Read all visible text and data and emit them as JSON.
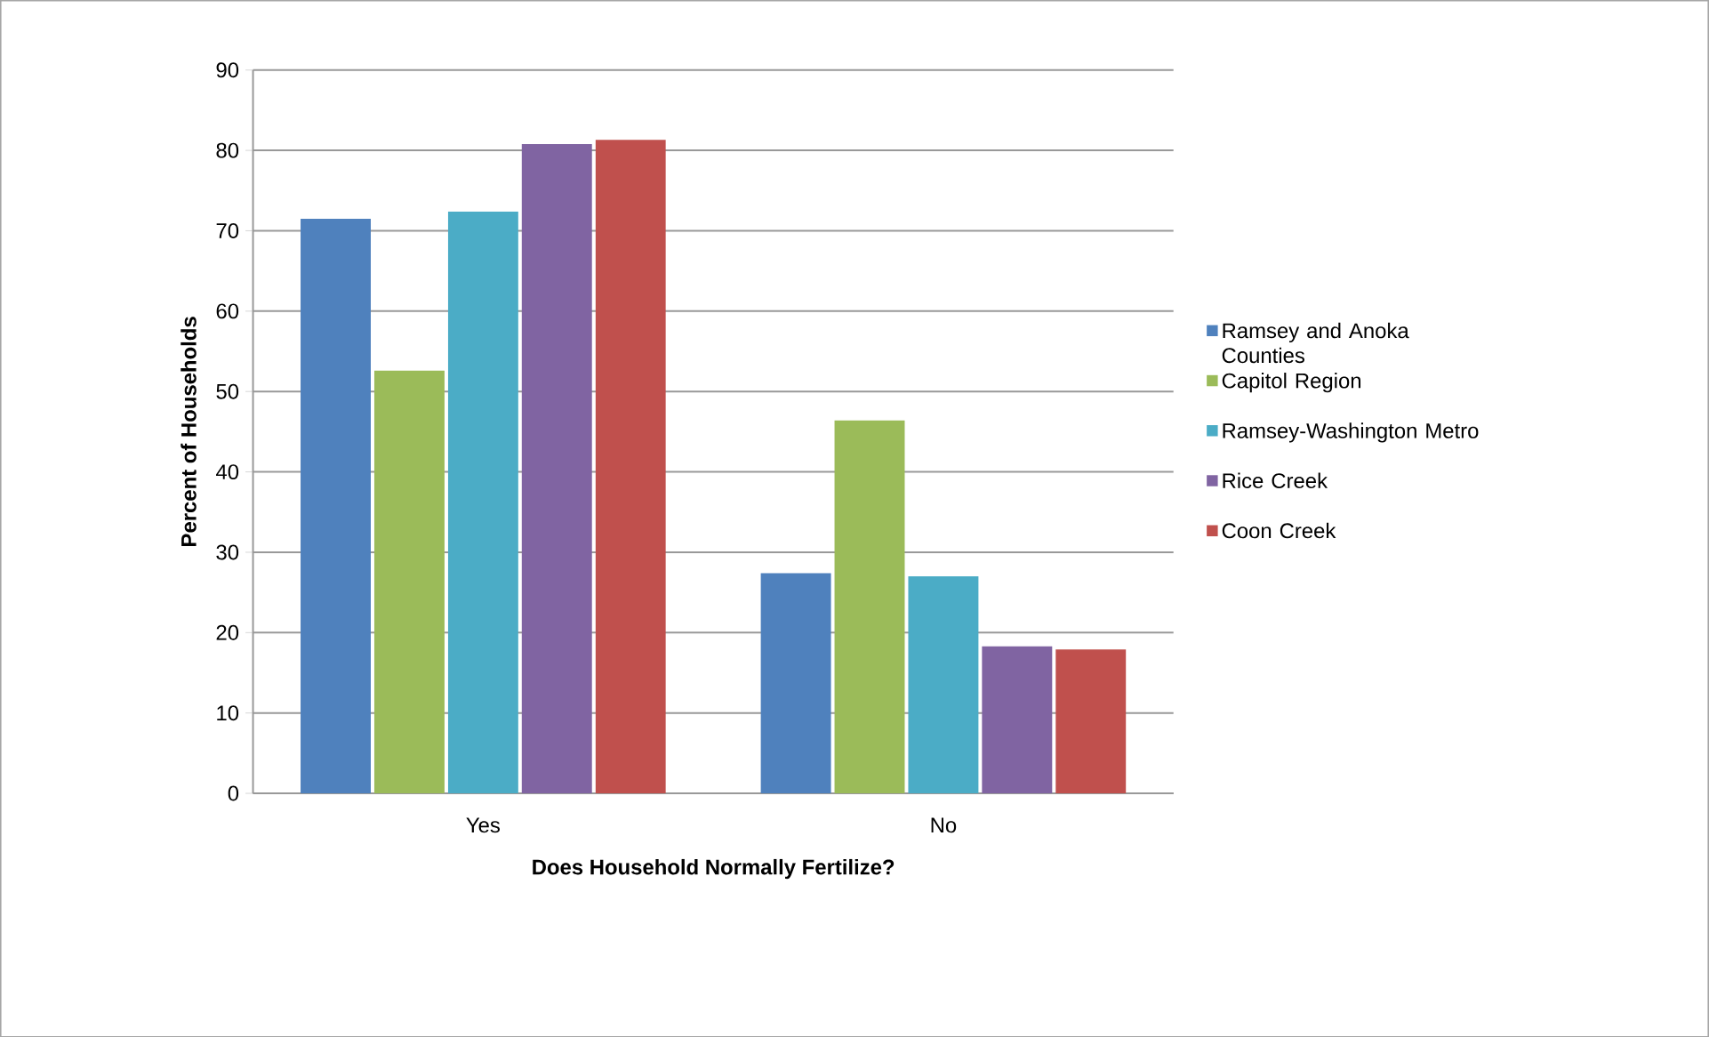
{
  "chart_data": {
    "type": "bar",
    "xlabel": "Does Household Normally Fertilize?",
    "ylabel": "Percent of Households",
    "categories": [
      "Yes",
      "No"
    ],
    "series": [
      {
        "name": "Ramsey and Anoka Counties",
        "color": "#4f81bd",
        "values": [
          71.5,
          27.4
        ]
      },
      {
        "name": "Capitol Region",
        "color": "#9bbb59",
        "values": [
          52.6,
          46.4
        ]
      },
      {
        "name": "Ramsey-Washington Metro",
        "color": "#4bacc6",
        "values": [
          72.4,
          27.0
        ]
      },
      {
        "name": "Rice Creek",
        "color": "#8064a2",
        "values": [
          80.8,
          18.3
        ]
      },
      {
        "name": "Coon Creek",
        "color": "#c0504d",
        "values": [
          81.3,
          17.9
        ]
      }
    ],
    "ylim": [
      0,
      90
    ],
    "yticks": [
      0,
      10,
      20,
      30,
      40,
      50,
      60,
      70,
      80,
      90
    ],
    "grid": "y",
    "legend": "right"
  }
}
